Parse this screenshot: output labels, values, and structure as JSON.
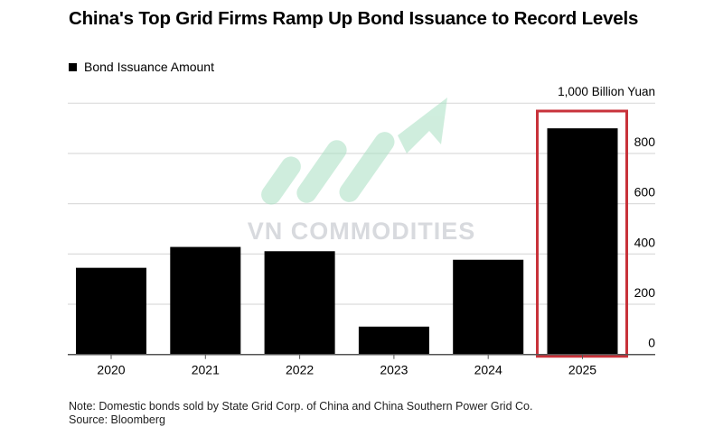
{
  "chart_data": {
    "type": "bar",
    "title": "China's Top Grid Firms Ramp Up Bond Issuance to Record Levels",
    "legend": {
      "entries": [
        "Bond Issuance Amount"
      ],
      "placement": "top-left"
    },
    "unit_label": "1,000 Billion Yuan",
    "categories": [
      "2020",
      "2021",
      "2022",
      "2023",
      "2024",
      "2025"
    ],
    "series": [
      {
        "name": "Bond Issuance Amount",
        "values": [
          345,
          428,
          411,
          111,
          377,
          900
        ],
        "color": "#000000"
      }
    ],
    "y_ticks": [
      "0",
      "200",
      "400",
      "600",
      "800"
    ],
    "ylim": [
      0,
      1000
    ],
    "y_axis_side": "right",
    "grid": true,
    "highlight": {
      "category": "2025",
      "color": "#c8323a"
    },
    "note": "Note: Domestic bonds sold by State Grid Corp. of China and China Southern Power Grid Co.",
    "source": "Source: Bloomberg"
  },
  "watermark": {
    "text": "VN COMMODITIES",
    "text_color": "#b9bcc4",
    "logo_color": "#a8e0c2"
  }
}
